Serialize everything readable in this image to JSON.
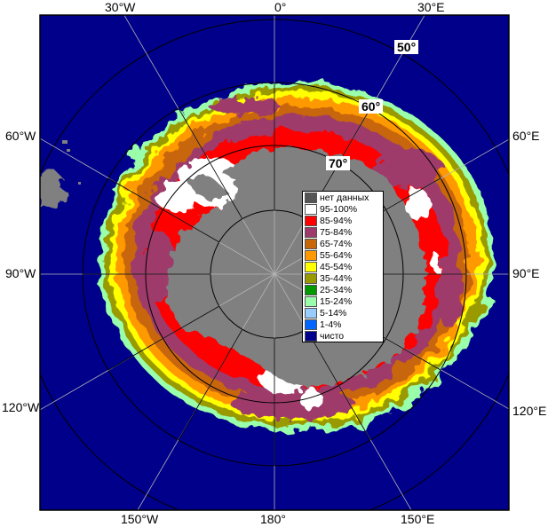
{
  "colors": {
    "ocean": "#00008b",
    "land": "#808080",
    "no_data": "#555555",
    "graticule": "#b4b4b4",
    "frame": "#000000"
  },
  "longitude_labels": {
    "top": [
      "30°W",
      "0°",
      "30°E"
    ],
    "left": [
      "60°W",
      "90°W",
      "120°W"
    ],
    "right": [
      "60°E",
      "90°E",
      "120°E"
    ],
    "bottom": [
      "150°W",
      "180°",
      "150°E"
    ]
  },
  "latitude_labels": [
    "50°",
    "60°",
    "70°"
  ],
  "legend": {
    "items": [
      {
        "label": "нет данных",
        "color": "#555555"
      },
      {
        "label": "95-100%",
        "color": "#ffffff"
      },
      {
        "label": "85-94%",
        "color": "#ff0000"
      },
      {
        "label": "75-84%",
        "color": "#9e3a6b"
      },
      {
        "label": "65-74%",
        "color": "#c8660a"
      },
      {
        "label": "55-64%",
        "color": "#ff9900"
      },
      {
        "label": "45-54%",
        "color": "#ffff00"
      },
      {
        "label": "35-44%",
        "color": "#999900"
      },
      {
        "label": "25-34%",
        "color": "#009900"
      },
      {
        "label": "15-24%",
        "color": "#99ffaa"
      },
      {
        "label": "5-14%",
        "color": "#99ccff"
      },
      {
        "label": "1-4%",
        "color": "#0066ff"
      },
      {
        "label": "чисто",
        "color": "#00008b"
      }
    ]
  }
}
